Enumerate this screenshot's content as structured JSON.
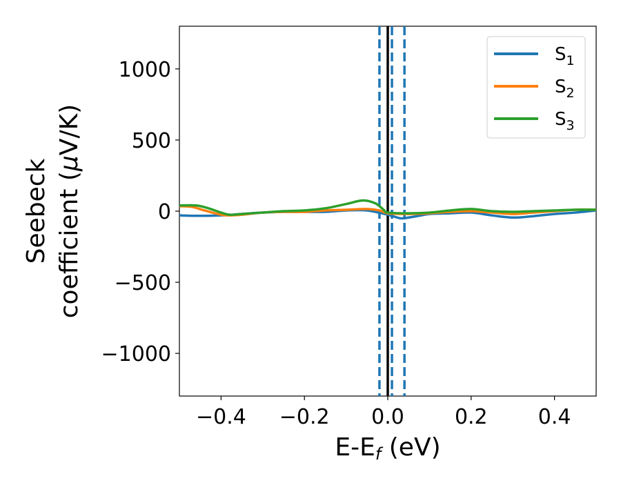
{
  "chart_data": {
    "type": "line",
    "xlabel": "E-E",
    "xlabel_sub": "f",
    "xlabel_unit": " (eV)",
    "ylabel_line1": "Seebeck",
    "ylabel_line2_prefix": "coefficient  (",
    "ylabel_mu": "μ",
    "ylabel_line2_suffix": "V/K)",
    "xlim": [
      -0.5,
      0.5
    ],
    "ylim": [
      -1300,
      1300
    ],
    "xticks": [
      -0.4,
      -0.2,
      0.0,
      0.2,
      0.4
    ],
    "xtick_labels": [
      "−0.4",
      "−0.2",
      "0.0",
      "0.2",
      "0.4"
    ],
    "yticks": [
      -1000,
      -500,
      0,
      500,
      1000
    ],
    "ytick_labels": [
      "−1000",
      "−500",
      "0",
      "500",
      "1000"
    ],
    "grid": false,
    "legend_position": "top-right",
    "fermi_line": {
      "x": 0.0,
      "color": "#000000"
    },
    "dashed_lines": [
      {
        "x": -0.02,
        "color": "#1f77b4"
      },
      {
        "x": 0.01,
        "color": "#1f77b4"
      },
      {
        "x": 0.04,
        "color": "#1f77b4"
      }
    ],
    "series": [
      {
        "name": "S",
        "sub": "1",
        "color": "#1f77b4",
        "x": [
          -0.5,
          -0.45,
          -0.4,
          -0.35,
          -0.3,
          -0.25,
          -0.2,
          -0.15,
          -0.1,
          -0.05,
          0.0,
          0.03,
          0.05,
          0.08,
          0.1,
          0.15,
          0.2,
          0.25,
          0.3,
          0.35,
          0.4,
          0.45,
          0.5
        ],
        "values": [
          -30,
          -33,
          -30,
          -20,
          -10,
          -5,
          -5,
          -5,
          5,
          5,
          -25,
          -50,
          -45,
          -30,
          -20,
          -15,
          -10,
          -30,
          -45,
          -35,
          -20,
          -10,
          5
        ]
      },
      {
        "name": "S",
        "sub": "2",
        "color": "#ff7f0e",
        "x": [
          -0.5,
          -0.47,
          -0.44,
          -0.4,
          -0.38,
          -0.35,
          -0.3,
          -0.25,
          -0.2,
          -0.15,
          -0.1,
          -0.05,
          -0.02,
          0.0,
          0.05,
          0.1,
          0.15,
          0.2,
          0.25,
          0.3,
          0.35,
          0.4,
          0.45,
          0.5
        ],
        "values": [
          35,
          30,
          5,
          -25,
          -30,
          -25,
          -10,
          -5,
          -5,
          5,
          10,
          15,
          5,
          -15,
          -20,
          -15,
          -5,
          0,
          -10,
          -20,
          -10,
          0,
          10,
          10
        ]
      },
      {
        "name": "S",
        "sub": "3",
        "color": "#2ca02c",
        "x": [
          -0.5,
          -0.46,
          -0.43,
          -0.4,
          -0.38,
          -0.35,
          -0.3,
          -0.25,
          -0.2,
          -0.15,
          -0.1,
          -0.06,
          -0.03,
          -0.01,
          0.0,
          0.05,
          0.1,
          0.15,
          0.2,
          0.25,
          0.3,
          0.35,
          0.4,
          0.45,
          0.5
        ],
        "values": [
          40,
          40,
          20,
          -10,
          -25,
          -20,
          -10,
          0,
          5,
          20,
          50,
          75,
          55,
          10,
          -10,
          -15,
          -10,
          5,
          15,
          0,
          -5,
          0,
          5,
          10,
          10
        ]
      }
    ]
  }
}
